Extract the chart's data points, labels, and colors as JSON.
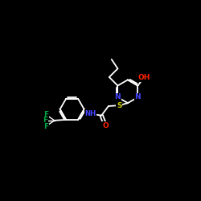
{
  "bg_color": "#000000",
  "bond_color": "#ffffff",
  "atom_colors": {
    "N": "#4444ff",
    "O": "#ff2200",
    "S": "#cccc00",
    "F": "#00aa44",
    "H": "#ffffff",
    "C": "#ffffff"
  }
}
